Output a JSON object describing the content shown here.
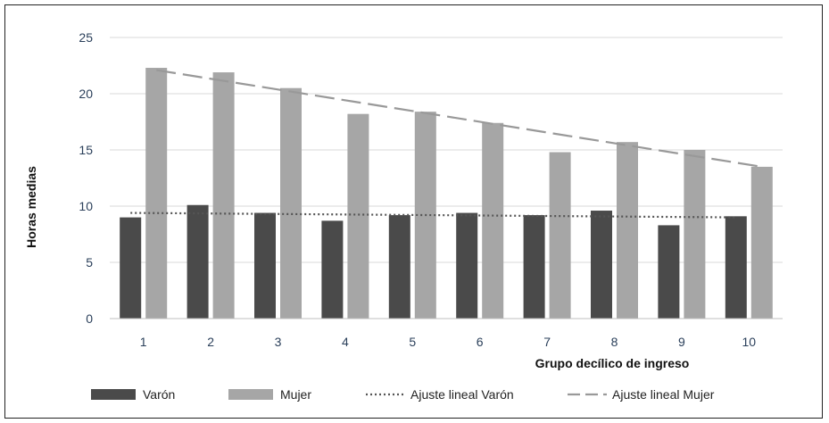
{
  "chart_data": {
    "type": "bar",
    "categories": [
      "1",
      "2",
      "3",
      "4",
      "5",
      "6",
      "7",
      "8",
      "9",
      "10"
    ],
    "series": [
      {
        "name": "Varón",
        "values": [
          9.0,
          10.1,
          9.4,
          8.7,
          9.2,
          9.4,
          9.2,
          9.6,
          8.3,
          9.1
        ],
        "color": "#4a4a4a"
      },
      {
        "name": "Mujer",
        "values": [
          22.3,
          21.9,
          20.5,
          18.2,
          18.4,
          17.4,
          14.8,
          15.7,
          15.0,
          13.5
        ],
        "color": "#a6a6a6"
      }
    ],
    "trendlines": [
      {
        "name": "Ajuste lineal Varón",
        "start": 9.4,
        "end": 9.0,
        "style": "dotted",
        "color": "#555555"
      },
      {
        "name": "Ajuste lineal Mujer",
        "start": 22.1,
        "end": 13.5,
        "style": "dashed",
        "color": "#999999"
      }
    ],
    "ylim": [
      0,
      25
    ],
    "yticks": [
      "0",
      "5",
      "10",
      "15",
      "20",
      "25"
    ],
    "ylabel": "Horas medias",
    "xlabel": "Grupo decílico de ingreso",
    "grid": true,
    "legend_position": "bottom"
  }
}
